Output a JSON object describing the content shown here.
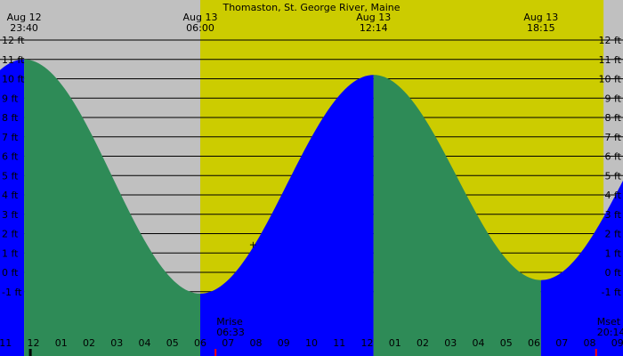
{
  "chart_data": {
    "type": "area",
    "title": "Thomaston, St. George River, Maine",
    "xlabel": "",
    "ylabel": "",
    "x_unit": "hours after Aug 12 00:00",
    "xlim": [
      10.8,
      33.2
    ],
    "ylim": [
      -2,
      12
    ],
    "y_ticks": [
      {
        "v": 12,
        "label": "12 ft"
      },
      {
        "v": 11,
        "label": "11 ft"
      },
      {
        "v": 10,
        "label": "10 ft"
      },
      {
        "v": 9,
        "label": "9 ft"
      },
      {
        "v": 8,
        "label": "8 ft"
      },
      {
        "v": 7,
        "label": "7 ft"
      },
      {
        "v": 6,
        "label": "6 ft"
      },
      {
        "v": 5,
        "label": "5 ft"
      },
      {
        "v": 4,
        "label": "4 ft"
      },
      {
        "v": 3,
        "label": "3 ft"
      },
      {
        "v": 2,
        "label": "2 ft"
      },
      {
        "v": 1,
        "label": "1 ft"
      },
      {
        "v": 0,
        "label": "0 ft"
      },
      {
        "v": -1,
        "label": "-1 ft"
      }
    ],
    "x_ticks": [
      {
        "h": 11,
        "label": "11"
      },
      {
        "h": 12,
        "label": "12"
      },
      {
        "h": 13,
        "label": "01"
      },
      {
        "h": 14,
        "label": "02"
      },
      {
        "h": 15,
        "label": "03"
      },
      {
        "h": 16,
        "label": "04"
      },
      {
        "h": 17,
        "label": "05"
      },
      {
        "h": 18,
        "label": "06"
      },
      {
        "h": 19,
        "label": "07"
      },
      {
        "h": 20,
        "label": "08"
      },
      {
        "h": 21,
        "label": "09"
      },
      {
        "h": 22,
        "label": "10"
      },
      {
        "h": 23,
        "label": "11"
      },
      {
        "h": 24,
        "label": "12"
      },
      {
        "h": 25,
        "label": "01"
      },
      {
        "h": 26,
        "label": "02"
      },
      {
        "h": 27,
        "label": "03"
      },
      {
        "h": 28,
        "label": "04"
      },
      {
        "h": 29,
        "label": "05"
      },
      {
        "h": 30,
        "label": "06"
      },
      {
        "h": 31,
        "label": "07"
      },
      {
        "h": 32,
        "label": "08"
      },
      {
        "h": 33,
        "label": "09"
      }
    ],
    "tides": [
      {
        "h": 11.667,
        "v": 11.0,
        "date": "Aug 12",
        "time": "23:40",
        "type": "high"
      },
      {
        "h": 18.0,
        "v": -1.1,
        "date": "Aug 13",
        "time": "06:00",
        "type": "low"
      },
      {
        "h": 24.233,
        "v": 10.2,
        "date": "Aug 13",
        "time": "12:14",
        "type": "high"
      },
      {
        "h": 30.25,
        "v": -0.4,
        "date": "Aug 13",
        "time": "18:15",
        "type": "low"
      }
    ],
    "series_end": {
      "h": 33.2,
      "v": 5.8
    },
    "day_band": {
      "start_h": 18.0,
      "end_h": 32.5
    },
    "moon_events": [
      {
        "label": "Mrise",
        "time": "06:33",
        "h": 18.55
      },
      {
        "label": "Mset",
        "time": "20:14",
        "h": 32.233
      }
    ],
    "marker": {
      "h": 19.9,
      "v": 1.45,
      "symbol": "+"
    },
    "grid": true,
    "colors": {
      "night_bg": "#c0c0c0",
      "day_bg": "#cccc00",
      "falling_tide": "#2e8b57",
      "rising_tide": "#0000ff",
      "grid": "#000000",
      "moon_tick": "#ff0000",
      "now_tick": "#000000"
    }
  }
}
